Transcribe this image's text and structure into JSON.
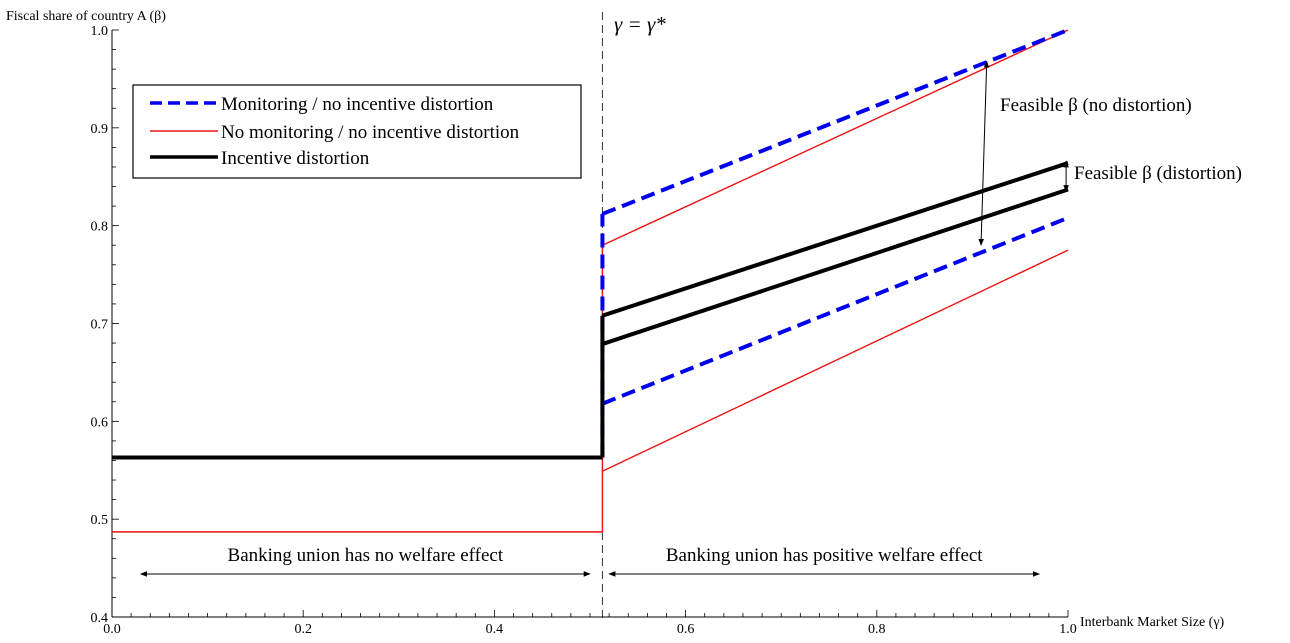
{
  "chart_data": {
    "type": "line",
    "title": "",
    "xlabel": "Interbank Market Size (γ)",
    "ylabel": "Fiscal share of country A (β)",
    "xlim": [
      0.0,
      1.0
    ],
    "ylim": [
      0.4,
      1.0
    ],
    "x_ticks": [
      "0.0",
      "0.2",
      "0.4",
      "0.6",
      "0.8",
      "1.0"
    ],
    "y_ticks": [
      "0.4",
      "0.5",
      "0.6",
      "0.7",
      "0.8",
      "0.9",
      "1.0"
    ],
    "legend_position": "top-left",
    "series": [
      {
        "name": "Monitoring / no incentive distortion",
        "style": "dashed",
        "color": "#0000ee",
        "width": "thick",
        "segments": [
          {
            "x": [
              0.0,
              0.513
            ],
            "y": [
              0.563,
              0.563
            ]
          },
          {
            "x": [
              0.513,
              1.0
            ],
            "y": [
              0.812,
              1.0
            ]
          },
          {
            "x": [
              0.513,
              1.0
            ],
            "y": [
              0.618,
              0.808
            ]
          }
        ]
      },
      {
        "name": "No monitoring / no incentive distortion",
        "style": "solid",
        "color": "#ee1111",
        "width": "thin",
        "segments": [
          {
            "x": [
              0.0,
              0.513
            ],
            "y": [
              0.487,
              0.487
            ]
          },
          {
            "x": [
              0.513,
              1.0
            ],
            "y": [
              0.78,
              1.0
            ]
          },
          {
            "x": [
              0.513,
              1.0
            ],
            "y": [
              0.549,
              0.775
            ]
          }
        ]
      },
      {
        "name": "Incentive distortion",
        "style": "solid",
        "color": "#000000",
        "width": "thick",
        "segments": [
          {
            "x": [
              0.0,
              0.513
            ],
            "y": [
              0.563,
              0.563
            ]
          },
          {
            "x": [
              0.513,
              1.0
            ],
            "y": [
              0.708,
              0.864
            ]
          },
          {
            "x": [
              0.513,
              1.0
            ],
            "y": [
              0.679,
              0.837
            ]
          }
        ]
      }
    ],
    "threshold": {
      "x": 0.513,
      "label": "γ = γ*"
    },
    "annotations": [
      {
        "text": "Banking union has no welfare effect",
        "x_range": [
          0.03,
          0.5
        ],
        "y": 0.444
      },
      {
        "text": "Banking union has positive welfare effect",
        "x_range": [
          0.52,
          0.97
        ],
        "y": 0.444
      },
      {
        "text": "Feasible β (no distortion)",
        "x": 0.915,
        "y_range": [
          0.78,
          0.968
        ]
      },
      {
        "text": "Feasible β (distortion)",
        "x": 0.998,
        "y_range": [
          0.837,
          0.864
        ]
      }
    ]
  }
}
